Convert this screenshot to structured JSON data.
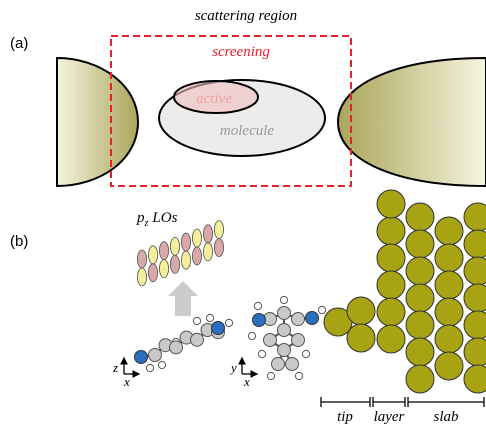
{
  "panel_a": {
    "label": "(a)",
    "title": "scattering region",
    "screening_label": "screening",
    "active_label": "active",
    "molecule_label": "molecule"
  },
  "panel_b": {
    "label": "(b)",
    "lo_label_base": "p",
    "lo_label_sub": "z",
    "lo_label_rest": "LOs",
    "axes_left": {
      "vertical": "z",
      "horizontal": "x"
    },
    "axes_right": {
      "vertical": "y",
      "horizontal": "x"
    },
    "segment_labels": [
      "tip",
      "layer",
      "slab"
    ]
  },
  "colors": {
    "screening": "#e8202a",
    "active_fill": "#f2c0c0",
    "molecule_fill": "#ececec",
    "molecule_text": "#999999",
    "electrode_dark": "#aaa55a",
    "electrode_light": "#f6f5df",
    "gold_atom": "#a8a312",
    "carbon": "#c9c9c9",
    "nitrogen": "#2a6fc0",
    "orbital_pink": "#d9a9a9",
    "orbital_yellow": "#f3ef9a",
    "arrow_gray": "#cccccc"
  }
}
